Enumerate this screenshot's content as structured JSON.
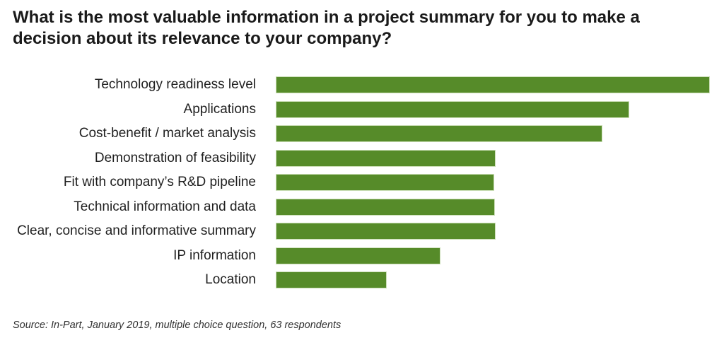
{
  "title": "What is the most valuable information in a project summary for you to make a decision about its relevance to your company?",
  "source_note": "Source: In-Part, January 2019, multiple choice question, 63 respondents",
  "colors": {
    "background": "#FFFFFF",
    "bar_fill": "#568B29",
    "bar_border": "#CBDEB7",
    "title_text": "#1A1A1A",
    "label_text": "#1F1F1F",
    "source_text": "#303030"
  },
  "chart_data": {
    "type": "bar",
    "orientation": "horizontal",
    "title": "What is the most valuable information in a project summary for you to make a decision about its relevance to your company?",
    "categories": [
      "Technology readiness level",
      "Applications",
      "Cost-benefit / market analysis",
      "Demonstration of feasibility",
      "Fit with company’s R&D pipeline",
      "Technical information and data",
      "Clear, concise and informative summary",
      "IP information",
      "Location"
    ],
    "values_pct_of_longest": [
      100,
      81.4,
      75.2,
      50.5,
      50.2,
      50.3,
      50.5,
      37.7,
      25.3
    ],
    "value_scale_note": "No numeric axis, gridlines or data labels are shown in the chart; values are bar lengths expressed as percent of the longest bar.",
    "axis_shown": false,
    "gridlines": false,
    "legend": false,
    "data_labels": false,
    "bar_color": "#568B29",
    "source_note": "Source: In-Part, January 2019, multiple choice question, 63 respondents"
  }
}
